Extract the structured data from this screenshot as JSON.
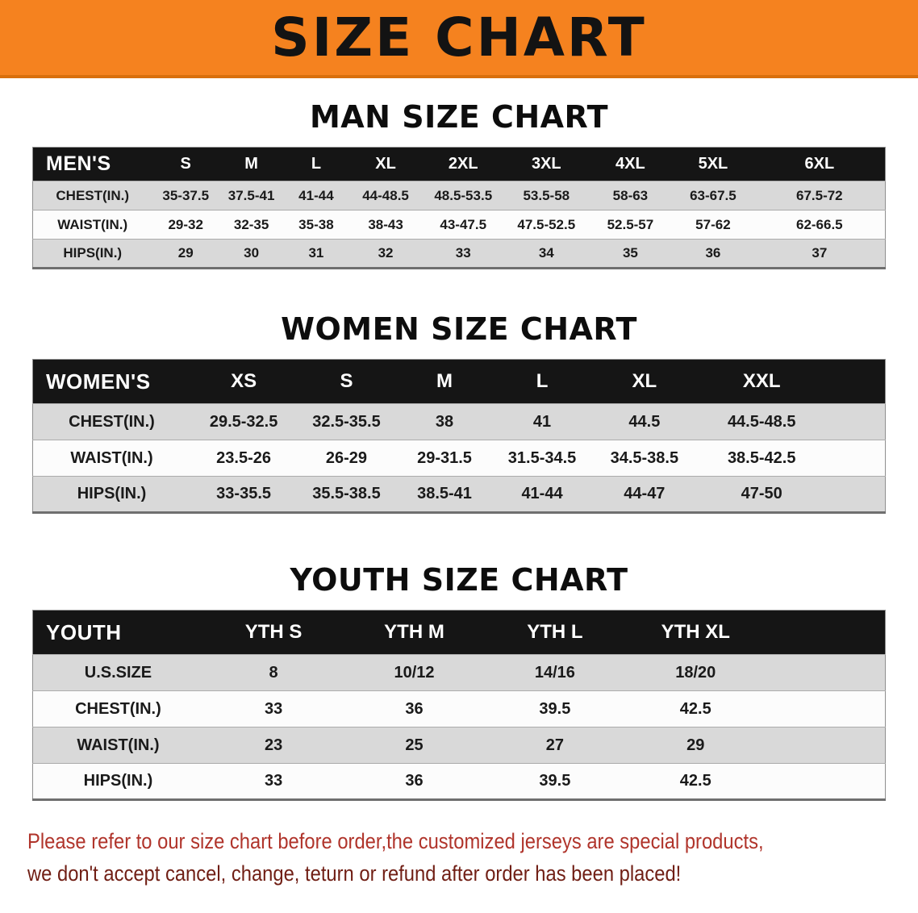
{
  "banner": {
    "title": "SIZE CHART"
  },
  "sections": [
    {
      "heading": "MAN SIZE CHART",
      "header": [
        "MEN'S",
        "S",
        "M",
        "L",
        "XL",
        "2XL",
        "3XL",
        "4XL",
        "5XL",
        "6XL"
      ],
      "rows": [
        [
          "CHEST(IN.)",
          "35-37.5",
          "37.5-41",
          "41-44",
          "44-48.5",
          "48.5-53.5",
          "53.5-58",
          "58-63",
          "63-67.5",
          "67.5-72"
        ],
        [
          "WAIST(IN.)",
          "29-32",
          "32-35",
          "35-38",
          "38-43",
          "43-47.5",
          "47.5-52.5",
          "52.5-57",
          "57-62",
          "62-66.5"
        ],
        [
          "HIPS(IN.)",
          "29",
          "30",
          "31",
          "32",
          "33",
          "34",
          "35",
          "36",
          "37"
        ]
      ]
    },
    {
      "heading": "WOMEN SIZE CHART",
      "header": [
        "WOMEN'S",
        "XS",
        "S",
        "M",
        "L",
        "XL",
        "XXL"
      ],
      "rows": [
        [
          "CHEST(IN.)",
          "29.5-32.5",
          "32.5-35.5",
          "38",
          "41",
          "44.5",
          "44.5-48.5"
        ],
        [
          "WAIST(IN.)",
          "23.5-26",
          "26-29",
          "29-31.5",
          "31.5-34.5",
          "34.5-38.5",
          "38.5-42.5"
        ],
        [
          "HIPS(IN.)",
          "33-35.5",
          "35.5-38.5",
          "38.5-41",
          "41-44",
          "44-47",
          "47-50"
        ]
      ]
    },
    {
      "heading": "YOUTH SIZE CHART",
      "header": [
        "YOUTH",
        "YTH S",
        "YTH M",
        "YTH L",
        "YTH XL"
      ],
      "rows": [
        [
          "U.S.SIZE",
          "8",
          "10/12",
          "14/16",
          "18/20"
        ],
        [
          "CHEST(IN.)",
          "33",
          "36",
          "39.5",
          "42.5"
        ],
        [
          "WAIST(IN.)",
          "23",
          "25",
          "27",
          "29"
        ],
        [
          "HIPS(IN.)",
          "33",
          "36",
          "39.5",
          "42.5"
        ]
      ]
    }
  ],
  "footer": {
    "lines": [
      "Please refer to our size chart before order,the customized jerseys are special products,",
      "we don't accept cancel, change, teturn or refund after order has been placed!"
    ]
  },
  "colors": {
    "banner_bg": "#F5821F",
    "header_bg": "#151515",
    "row_alt": "#D9D9D9",
    "notice_1": "#B0342B",
    "notice_2": "#701E14"
  }
}
